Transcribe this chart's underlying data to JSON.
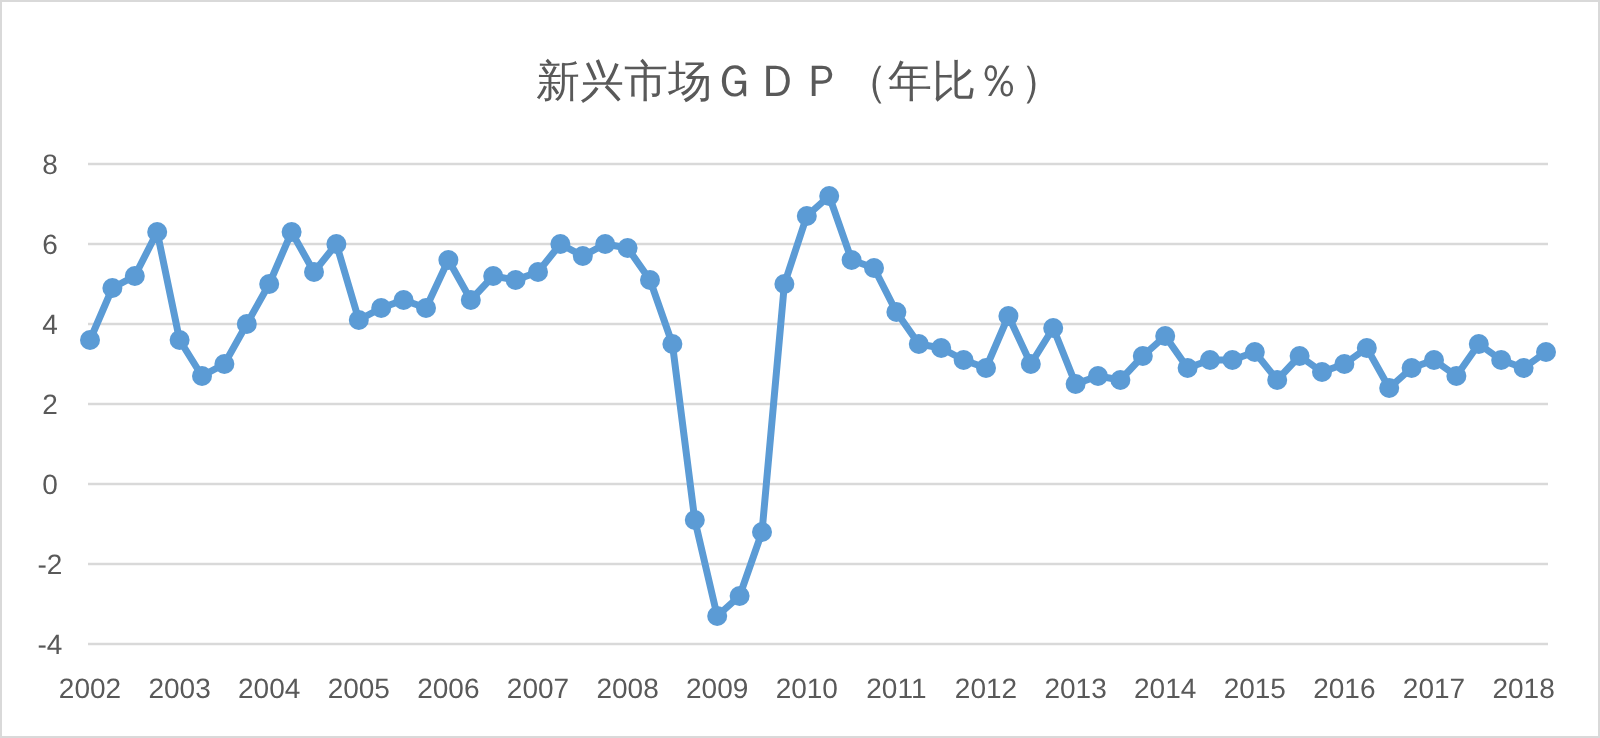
{
  "chart_data": {
    "type": "line",
    "title": "新兴市场ＧＤＰ（年比％）",
    "categories": [
      "2002",
      null,
      null,
      null,
      "2003",
      null,
      null,
      null,
      "2004",
      null,
      null,
      null,
      "2005",
      null,
      null,
      null,
      "2006",
      null,
      null,
      null,
      "2007",
      null,
      null,
      null,
      "2008",
      null,
      null,
      null,
      "2009",
      null,
      null,
      null,
      "2010",
      null,
      null,
      null,
      "2011",
      null,
      null,
      null,
      "2012",
      null,
      null,
      null,
      "2013",
      null,
      null,
      null,
      "2014",
      null,
      null,
      null,
      "2015",
      null,
      null,
      null,
      "2016",
      null,
      null,
      null,
      "2017",
      null,
      null,
      null,
      "2018",
      null
    ],
    "values": [
      3.6,
      4.9,
      5.2,
      6.3,
      3.6,
      2.7,
      3.0,
      4.0,
      5.0,
      6.3,
      5.3,
      6.0,
      4.1,
      4.4,
      4.6,
      4.4,
      5.6,
      4.6,
      5.2,
      5.1,
      5.3,
      6.0,
      5.7,
      6.0,
      5.9,
      5.1,
      3.5,
      -0.9,
      -3.3,
      -2.8,
      -1.2,
      5.0,
      6.7,
      7.2,
      5.6,
      5.4,
      4.3,
      3.5,
      3.4,
      3.1,
      2.9,
      4.2,
      3.0,
      3.9,
      2.5,
      2.7,
      2.6,
      3.2,
      3.7,
      2.9,
      3.1,
      3.1,
      3.3,
      2.6,
      3.2,
      2.8,
      3.0,
      3.4,
      2.4,
      2.9,
      3.1,
      2.7,
      3.5,
      3.1,
      2.9,
      3.3
    ],
    "color": "#5b9bd5",
    "ylim": [
      -4,
      8
    ],
    "yticks": [
      -4,
      -2,
      0,
      2,
      4,
      6,
      8
    ],
    "grid": "y",
    "marker": "circle",
    "line_style": "solid"
  }
}
